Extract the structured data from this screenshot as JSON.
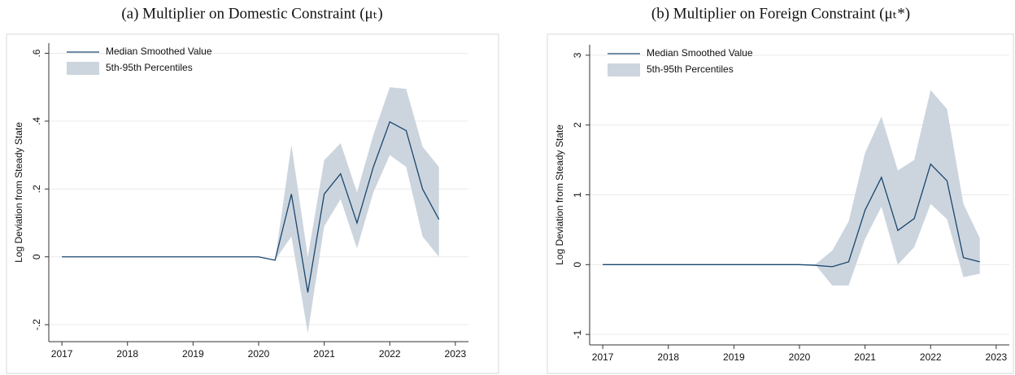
{
  "chart_data": [
    {
      "type": "line",
      "title": "(a) Multiplier on Domestic Constraint (μₜ)",
      "ylabel": "Log Deviation from Steady State",
      "x": [
        2017,
        2017.25,
        2017.5,
        2017.75,
        2018,
        2018.25,
        2018.5,
        2018.75,
        2019,
        2019.25,
        2019.5,
        2019.75,
        2020,
        2020.25,
        2020.5,
        2020.75,
        2021,
        2021.25,
        2021.5,
        2021.75,
        2022,
        2022.25,
        2022.5,
        2022.75
      ],
      "series": [
        {
          "name": "Median Smoothed Value",
          "color": "#1a476f",
          "values": [
            0,
            0,
            0,
            0,
            0,
            0,
            0,
            0,
            0,
            0,
            0,
            0,
            0,
            -0.01,
            0.185,
            -0.105,
            0.185,
            0.245,
            0.1,
            0.265,
            0.398,
            0.372,
            0.2,
            0.11
          ]
        }
      ],
      "band": {
        "name": "5th-95th Percentiles",
        "color": "#ccd5de",
        "lower": [
          0,
          0,
          0,
          0,
          0,
          0,
          0,
          0,
          0,
          0,
          0,
          0,
          0,
          -0.01,
          0.06,
          -0.225,
          0.09,
          0.17,
          0.025,
          0.19,
          0.3,
          0.265,
          0.06,
          0.0
        ],
        "upper": [
          0,
          0,
          0,
          0,
          0,
          0,
          0,
          0,
          0,
          0,
          0,
          0,
          0,
          -0.01,
          0.33,
          0.0,
          0.285,
          0.335,
          0.19,
          0.36,
          0.5,
          0.495,
          0.325,
          0.265
        ]
      },
      "xlim": [
        2016.8,
        2023.2
      ],
      "xticks": [
        2017,
        2018,
        2019,
        2020,
        2021,
        2022,
        2023
      ],
      "ylim": [
        -0.25,
        0.63
      ],
      "yticks": [
        {
          "value": -0.2,
          "label": "-.2"
        },
        0,
        {
          "value": 0.2,
          "label": ".2"
        },
        {
          "value": 0.4,
          "label": ".4"
        },
        {
          "value": 0.6,
          "label": ".6"
        }
      ],
      "grid": true
    },
    {
      "type": "line",
      "title": "(b) Multiplier on Foreign Constraint (μₜ*)",
      "ylabel": "Log Deviation from Steady State",
      "x": [
        2017,
        2017.25,
        2017.5,
        2017.75,
        2018,
        2018.25,
        2018.5,
        2018.75,
        2019,
        2019.25,
        2019.5,
        2019.75,
        2020,
        2020.25,
        2020.5,
        2020.75,
        2021,
        2021.25,
        2021.5,
        2021.75,
        2022,
        2022.25,
        2022.5,
        2022.75
      ],
      "series": [
        {
          "name": "Median Smoothed Value",
          "color": "#1a476f",
          "values": [
            0,
            0,
            0,
            0,
            0,
            0,
            0,
            0,
            0,
            0,
            0,
            0,
            0,
            -0.01,
            -0.03,
            0.04,
            0.78,
            1.25,
            0.49,
            0.66,
            1.44,
            1.2,
            0.1,
            0.04
          ]
        }
      ],
      "band": {
        "name": "5th-95th Percentiles",
        "color": "#ccd5de",
        "lower": [
          0,
          0,
          0,
          0,
          0,
          0,
          0,
          0,
          0,
          0,
          0,
          0,
          0,
          -0.01,
          -0.3,
          -0.3,
          0.37,
          0.83,
          0.0,
          0.25,
          0.87,
          0.65,
          -0.18,
          -0.13
        ],
        "upper": [
          0,
          0,
          0,
          0,
          0,
          0,
          0,
          0,
          0,
          0,
          0,
          0,
          0,
          0.01,
          0.2,
          0.62,
          1.6,
          2.12,
          1.35,
          1.5,
          2.5,
          2.23,
          0.87,
          0.38
        ]
      },
      "xlim": [
        2016.8,
        2023.2
      ],
      "xticks": [
        2017,
        2018,
        2019,
        2020,
        2021,
        2022,
        2023
      ],
      "ylim": [
        -1.15,
        3.15
      ],
      "yticks": [
        -1,
        0,
        1,
        2,
        3
      ],
      "grid": true
    }
  ]
}
